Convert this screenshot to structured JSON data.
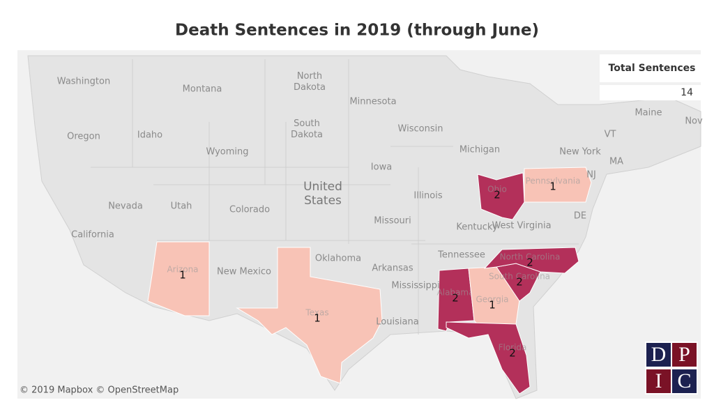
{
  "title": "Death Sentences in 2019 (through June)",
  "map": {
    "base_labels": [
      "Washington",
      "Montana",
      "North Dakota",
      "Minnesota",
      "Oregon",
      "Idaho",
      "South Dakota",
      "Wisconsin",
      "Michigan",
      "New York",
      "Maine",
      "Nov",
      "VT",
      "MA",
      "Wyoming",
      "Iowa",
      "United States",
      "Nevada",
      "Utah",
      "Colorado",
      "Illinois",
      "NJ",
      "California",
      "Missouri",
      "Kentucky",
      "West Virginia",
      "DE",
      "Oklahoma",
      "New Mexico",
      "Arkansas",
      "Tennessee",
      "Mississippi",
      "Louisiana"
    ],
    "states": [
      {
        "name": "Arizona",
        "value": 1,
        "color": "#f8c3b6"
      },
      {
        "name": "Texas",
        "value": 1,
        "color": "#f8c3b6"
      },
      {
        "name": "Ohio",
        "value": 2,
        "color": "#b3305a"
      },
      {
        "name": "Pennsylvania",
        "value": 1,
        "color": "#f8c3b6"
      },
      {
        "name": "Alabama",
        "value": 2,
        "color": "#b3305a"
      },
      {
        "name": "Georgia",
        "value": 1,
        "color": "#f8c3b6"
      },
      {
        "name": "South Carolina",
        "value": 2,
        "color": "#b3305a"
      },
      {
        "name": "North Carolina",
        "value": 2,
        "color": "#b3305a"
      },
      {
        "name": "Florida",
        "value": 2,
        "color": "#b3305a"
      }
    ]
  },
  "legend": {
    "title": "Total Sentences",
    "value": 14
  },
  "attribution": "© 2019 Mapbox © OpenStreetMap",
  "logo": [
    "D",
    "P",
    "I",
    "C"
  ]
}
